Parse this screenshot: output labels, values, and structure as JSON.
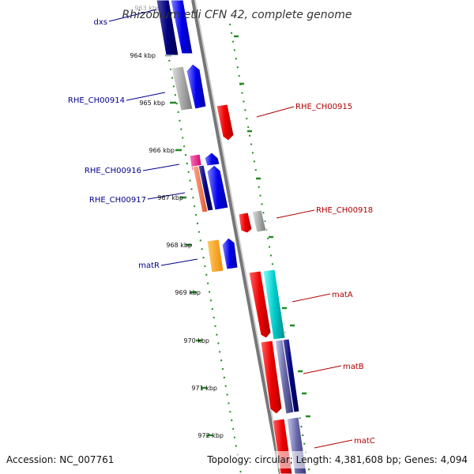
{
  "title": "Rhizobium etli CFN 42, complete genome",
  "footer": {
    "accession": "Accession: NC_007761",
    "summary": "Topology: circular; Length: 4,381,608 bp; Genes: 4,094"
  },
  "ticks": [
    {
      "label": "963 kbp"
    },
    {
      "label": "964 kbp"
    },
    {
      "label": "965 kbp"
    },
    {
      "label": "966 kbp"
    },
    {
      "label": "967 kbp"
    },
    {
      "label": "968 kbp"
    },
    {
      "label": "969 kbp"
    },
    {
      "label": "970 kbp"
    },
    {
      "label": "971 kbp"
    },
    {
      "label": "972 kbp"
    }
  ],
  "genes_left": [
    {
      "name": "dxs"
    },
    {
      "name": "RHE_CH00914"
    },
    {
      "name": "RHE_CH00916"
    },
    {
      "name": "RHE_CH00917"
    },
    {
      "name": "matR"
    }
  ],
  "genes_right": [
    {
      "name": "RHE_CH00915"
    },
    {
      "name": "RHE_CH00918"
    },
    {
      "name": "matA"
    },
    {
      "name": "matB"
    },
    {
      "name": "matC"
    }
  ],
  "colors": {
    "backbone": "#888888",
    "tick_green": "#228b22",
    "left_label": "#00008b",
    "right_label": "#b00000",
    "blue": "#0000ee",
    "navy": "#000080",
    "red": "#ee0000",
    "grey": "#aaaaaa",
    "pink": "#ee1177",
    "salmon": "#ee6644",
    "orange": "#ff9900",
    "cyan": "#00cccc",
    "slate": "#6a6aaa"
  }
}
